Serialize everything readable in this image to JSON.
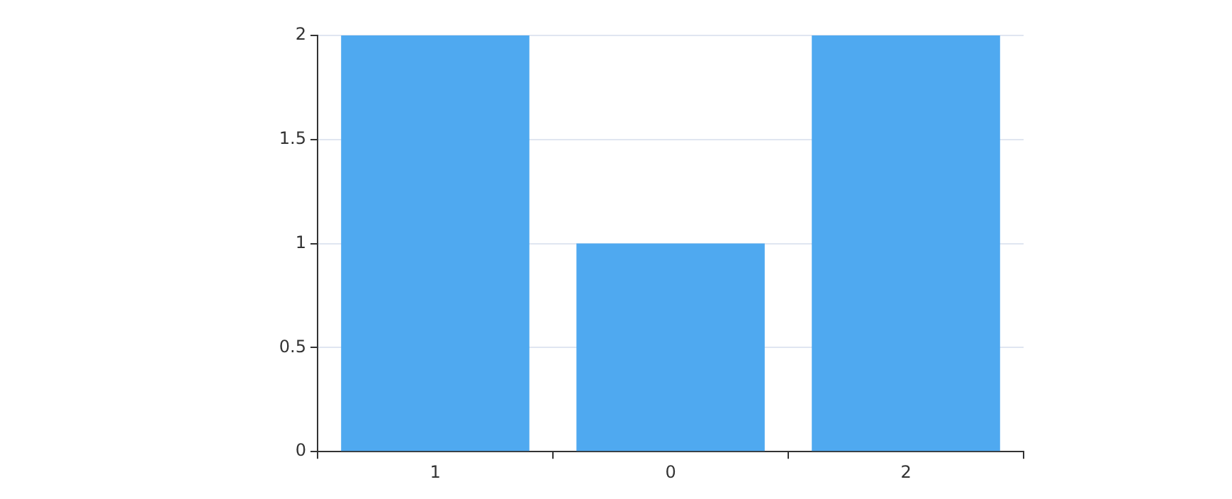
{
  "chart_data": {
    "type": "bar",
    "categories": [
      "1",
      "0",
      "2"
    ],
    "values": [
      2,
      1,
      2
    ],
    "color": "#4fa9f0",
    "ylim": [
      0,
      2
    ],
    "yticks": [
      0,
      0.5,
      1,
      1.5,
      2
    ],
    "grid": "y",
    "legend": false
  }
}
